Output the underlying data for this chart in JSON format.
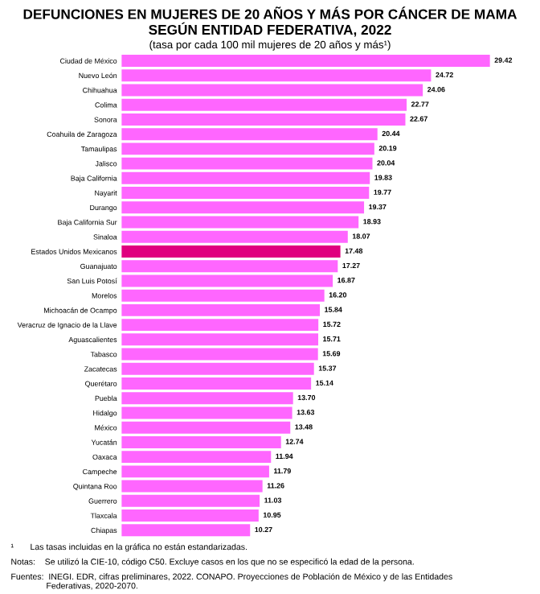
{
  "chart_data": {
    "type": "bar",
    "orientation": "horizontal",
    "title": "DEFUNCIONES EN MUJERES DE 20 AÑOS Y MÁS POR CÁNCER DE MAMA\nSEGÚN ENTIDAD FEDERATIVA, 2022",
    "subtitle": "(tasa por cada 100 mil mujeres de 20 años y más¹)",
    "categories": [
      "Ciudad de México",
      "Nuevo León",
      "Chihuahua",
      "Colima",
      "Sonora",
      "Coahuila de Zaragoza",
      "Tamaulipas",
      "Jalisco",
      "Baja California",
      "Nayarit",
      "Durango",
      "Baja California Sur",
      "Sinaloa",
      "Estados Unidos Mexicanos",
      "Guanajuato",
      "San Luis Potosí",
      "Morelos",
      "Michoacán de Ocampo",
      "Veracruz de Ignacio de la Llave",
      "Aguascalientes",
      "Tabasco",
      "Zacatecas",
      "Querétaro",
      "Puebla",
      "Hidalgo",
      "México",
      "Yucatán",
      "Oaxaca",
      "Campeche",
      "Quintana Roo",
      "Guerrero",
      "Tlaxcala",
      "Chiapas"
    ],
    "values": [
      29.42,
      24.72,
      24.06,
      22.77,
      22.67,
      20.44,
      20.19,
      20.04,
      19.83,
      19.77,
      19.37,
      18.93,
      18.07,
      17.48,
      17.27,
      16.87,
      16.2,
      15.84,
      15.72,
      15.71,
      15.69,
      15.37,
      15.14,
      13.7,
      13.63,
      13.48,
      12.74,
      11.94,
      11.79,
      11.26,
      11.03,
      10.95,
      10.27
    ],
    "colors": [
      "#ff66ff",
      "#ff66ff",
      "#ff66ff",
      "#ff66ff",
      "#ff66ff",
      "#ff66ff",
      "#ff66ff",
      "#ff66ff",
      "#ff66ff",
      "#ff66ff",
      "#ff66ff",
      "#ff66ff",
      "#ff66ff",
      "#e0007f",
      "#ff66ff",
      "#ff66ff",
      "#ff66ff",
      "#ff66ff",
      "#ff66ff",
      "#ff66ff",
      "#ff66ff",
      "#ff66ff",
      "#ff66ff",
      "#ff66ff",
      "#ff66ff",
      "#ff66ff",
      "#ff66ff",
      "#ff66ff",
      "#ff66ff",
      "#ff66ff",
      "#ff66ff",
      "#ff66ff",
      "#ff66ff"
    ],
    "value_labels": [
      "29.42",
      "24.72",
      "24.06",
      "22.77",
      "22.67",
      "20.44",
      "20.19",
      "20.04",
      "19.83",
      "19.77",
      "19.37",
      "18.93",
      "18.07",
      "17.48",
      "17.27",
      "16.87",
      "16.20",
      "15.84",
      "15.72",
      "15.71",
      "15.69",
      "15.37",
      "15.14",
      "13.70",
      "13.63",
      "13.48",
      "12.74",
      "11.94",
      "11.79",
      "11.26",
      "11.03",
      "10.95",
      "10.27"
    ],
    "annotations": [
      "¹       Las tasas incluidas en la gráfica no están estandarizadas.",
      "Notas:    Se utilizó la CIE-10, código C50. Excluye casos en los que no se especificó la edad de la persona.",
      "Fuentes:  INEGI. EDR, cifras preliminares, 2022. CONAPO. Proyecciones de Población de México y de las Entidades\n               Federativas, 2020-2070."
    ]
  }
}
